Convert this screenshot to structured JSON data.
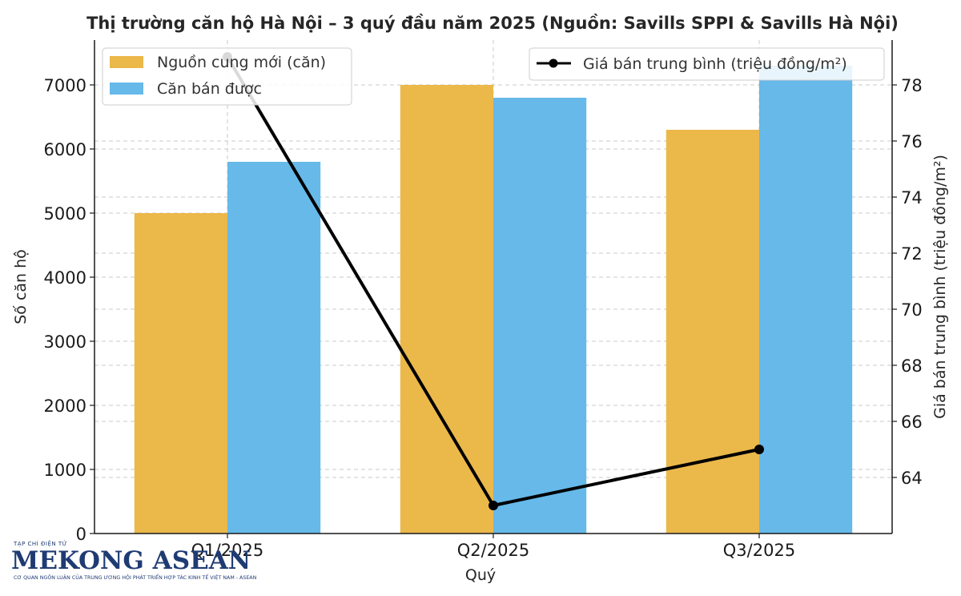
{
  "chart_data": {
    "type": "bar",
    "title": "Thị trường căn hộ Hà Nội – 3 quý đầu năm 2025 (Nguồn: Savills SPPI & Savills Hà Nội)",
    "xlabel": "Quý",
    "ylabel": "Số căn hộ",
    "y2label": "Giá bán trung bình (triệu đồng/m²)",
    "categories": [
      "Q1/2025",
      "Q2/2025",
      "Q3/2025"
    ],
    "ylim": [
      0,
      7700
    ],
    "y2lim": [
      62.0,
      79.6
    ],
    "yticks": [
      0,
      1000,
      2000,
      3000,
      4000,
      5000,
      6000,
      7000
    ],
    "y2ticks": [
      64,
      66,
      68,
      70,
      72,
      74,
      76,
      78
    ],
    "grid": true,
    "series": [
      {
        "name": "Nguồn cung mới (căn)",
        "type": "bar",
        "axis": "left",
        "color": "#EBB84A",
        "values": [
          5000,
          7000,
          6300
        ]
      },
      {
        "name": "Căn bán được",
        "type": "bar",
        "axis": "left",
        "color": "#66B9E9",
        "values": [
          5800,
          6800,
          7300
        ]
      },
      {
        "name": "Giá bán trung bình (triệu đồng/m²)",
        "type": "line",
        "axis": "right",
        "color": "#000000",
        "values": [
          79,
          63,
          65
        ]
      }
    ],
    "legend": {
      "bars": "top-left",
      "line": "top-right"
    }
  },
  "watermark": {
    "top": "TẠP CHÍ ĐIỆN TỬ",
    "name": "MEKONG ASEAN",
    "tagline": "CƠ QUAN NGÔN LUẬN CỦA TRUNG ƯƠNG HỘI PHÁT TRIỂN HỢP TÁC KINH TẾ VIỆT NAM - ASEAN"
  }
}
